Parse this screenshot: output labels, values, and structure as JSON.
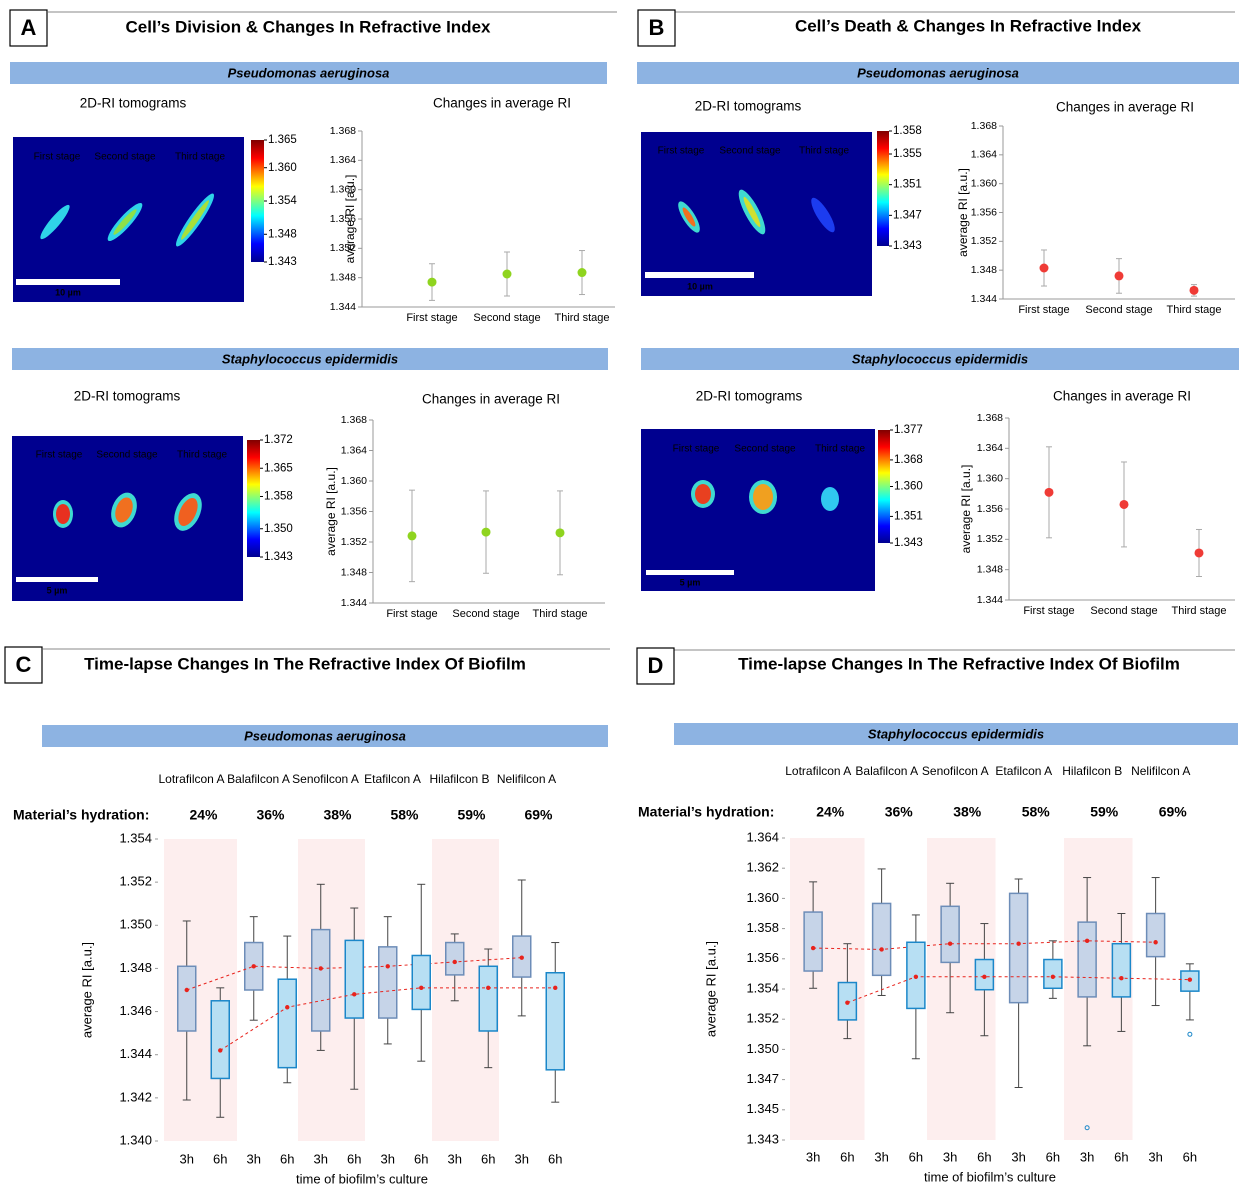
{
  "panels": [
    {
      "letter": "A",
      "title": "Cell’s Division & Changes In Refractive Index"
    },
    {
      "letter": "B",
      "title": "Cell’s Death & Changes In Refractive Index"
    },
    {
      "letter": "C",
      "title": "Time-lapse Changes In The Refractive Index Of Biofilm"
    },
    {
      "letter": "D",
      "title": "Time-lapse Changes In The Refractive Index Of Biofilm"
    }
  ],
  "tomograms": [
    {
      "banner": "Pseudomonas aeruginosa",
      "heading": "2D-RI tomograms",
      "stages": [
        "First stage",
        "Second stage",
        "Third stage"
      ],
      "scale_bar": "10 µm",
      "colorbar_ticks": [
        1.365,
        {
          "value": 1.36,
          "label": "1.360"
        },
        1.354,
        1.348,
        1.343
      ]
    },
    {
      "banner": "Staphylococcus epidermidis",
      "heading": "2D-RI tomograms",
      "stages": [
        "First stage",
        "Second stage",
        "Third stage"
      ],
      "scale_bar": "5 µm",
      "colorbar_ticks": [
        1.372,
        1.365,
        1.358,
        {
          "value": 1.35,
          "label": "1.350"
        },
        1.343
      ]
    },
    {
      "banner": "Pseudomonas aeruginosa",
      "heading": "2D-RI tomograms",
      "stages": [
        "First stage",
        "Second stage",
        "Third stage"
      ],
      "scale_bar": "10 µm",
      "colorbar_ticks": [
        1.358,
        1.355,
        1.351,
        1.347,
        1.343
      ]
    },
    {
      "banner": "Staphylococcus epidermidis",
      "heading": "2D-RI tomograms",
      "stages": [
        "First stage",
        "Second stage",
        "Third stage"
      ],
      "scale_bar": "5 µm",
      "colorbar_ticks": [
        1.377,
        1.368,
        {
          "value": 1.36,
          "label": "1.360"
        },
        1.351,
        1.343
      ]
    }
  ],
  "chart_data": [
    {
      "type": "errorbar",
      "title": "Changes in average RI",
      "y_label": "average RI [a.u.]",
      "categories": [
        "First stage",
        "Second stage",
        "Third stage"
      ],
      "values": [
        1.3474,
        1.3485,
        1.3487
      ],
      "errors": [
        0.0025,
        0.003,
        0.003
      ],
      "color": "#8fd41f",
      "ylim": [
        1.344,
        1.368
      ],
      "yticks": [
        1.344,
        1.348,
        1.352,
        1.356,
        {
          "value": 1.36,
          "label": "1.360"
        },
        1.364,
        1.368
      ]
    },
    {
      "type": "errorbar",
      "title": "Changes in average RI",
      "y_label": "average RI [a.u.]",
      "categories": [
        "First stage",
        "Second stage",
        "Third stage"
      ],
      "values": [
        1.3528,
        1.3533,
        1.3532
      ],
      "errors": [
        0.006,
        0.0054,
        0.0055
      ],
      "color": "#8fd41f",
      "ylim": [
        1.344,
        1.368
      ],
      "yticks": [
        1.344,
        1.348,
        1.352,
        1.356,
        {
          "value": 1.36,
          "label": "1.360"
        },
        1.364,
        1.368
      ]
    },
    {
      "type": "errorbar",
      "title": "Changes in average RI",
      "y_label": "average RI [a.u.]",
      "categories": [
        "First stage",
        "Second stage",
        "Third stage"
      ],
      "values": [
        1.3483,
        1.3472,
        1.3452
      ],
      "errors": [
        0.0025,
        0.0024,
        0.0008
      ],
      "color": "#ef3b36",
      "ylim": [
        1.344,
        1.368
      ],
      "yticks": [
        1.344,
        1.348,
        1.352,
        1.356,
        {
          "value": 1.36,
          "label": "1.360"
        },
        1.364,
        1.368
      ]
    },
    {
      "type": "errorbar",
      "title": "Changes in average RI",
      "y_label": "average RI [a.u.]",
      "categories": [
        "First stage",
        "Second stage",
        "Third stage"
      ],
      "values": [
        1.3582,
        1.3566,
        1.3502
      ],
      "errors": [
        0.006,
        0.0056,
        0.0031
      ],
      "color": "#ef3b36",
      "ylim": [
        1.344,
        1.368
      ],
      "yticks": [
        1.344,
        1.348,
        1.352,
        1.356,
        {
          "value": 1.36,
          "label": "1.360"
        },
        1.364,
        1.368
      ]
    },
    {
      "type": "box",
      "subtitle": "Pseudomonas aeruginosa",
      "x_label": "time of biofilm’s culture",
      "y_label": "average RI [a.u.]",
      "categories": [
        "Lotrafilcon A",
        "Balafilcon A",
        "Senofilcon A",
        "Etafilcon A",
        "Hilafilcon B",
        "Nelifilcon A"
      ],
      "hydration": {
        "label": "Material’s hydration:",
        "values": [
          24,
          36,
          38,
          58,
          59,
          69
        ],
        "value_labels": [
          "24%",
          "36%",
          "38%",
          "58%",
          "59%",
          "69%"
        ]
      },
      "series": [
        {
          "name": "3h",
          "color": "#c6d4e8",
          "edge": "#6d8db8",
          "line_color": "#e8231c",
          "low": [
            1.3419,
            1.3456,
            1.3442,
            1.3445,
            1.3465,
            1.3458
          ],
          "q1": [
            1.3451,
            1.347,
            1.3451,
            1.3457,
            1.3477,
            1.3476
          ],
          "median": [
            1.347,
            1.3481,
            1.348,
            1.3481,
            1.3483,
            1.3485
          ],
          "q3": [
            1.3481,
            1.3492,
            1.3498,
            1.349,
            1.3492,
            1.3495
          ],
          "high": [
            1.3502,
            1.3504,
            1.3519,
            1.3504,
            1.3496,
            1.3521
          ]
        },
        {
          "name": "6h",
          "color": "#b7dff3",
          "edge": "#1b87c9",
          "line_color": "#e8231c",
          "low": [
            1.3411,
            1.3427,
            1.3424,
            1.3437,
            1.3434,
            1.3418
          ],
          "q1": [
            1.3429,
            1.3434,
            1.3457,
            1.3461,
            1.3451,
            1.3433
          ],
          "median": [
            1.3442,
            1.3462,
            1.3468,
            1.3471,
            1.3471,
            1.3471
          ],
          "q3": [
            1.3465,
            1.3475,
            1.3493,
            1.3486,
            1.3481,
            1.3478
          ],
          "high": [
            1.3471,
            1.3495,
            1.3508,
            1.3519,
            1.3489,
            1.3492
          ]
        }
      ],
      "ylim": [
        1.34,
        1.354
      ],
      "yticks": [
        {
          "value": 1.34,
          "label": "1.340"
        },
        1.342,
        1.344,
        1.346,
        1.348,
        {
          "value": 1.35,
          "label": "1.350"
        },
        1.352,
        1.354
      ]
    },
    {
      "type": "box",
      "subtitle": "Staphylococcus epidermidis",
      "x_label": "time of biofilm’s culture",
      "y_label": "average RI [a.u.]",
      "categories": [
        "Lotrafilcon A",
        "Balafilcon A",
        "Senofilcon A",
        "Etafilcon A",
        "Hilafilcon B",
        "Nelifilcon A"
      ],
      "hydration": {
        "label": "Material’s hydration:",
        "values": [
          24,
          36,
          38,
          58,
          59,
          69
        ],
        "value_labels": [
          "24%",
          "36%",
          "38%",
          "58%",
          "59%",
          "69%"
        ]
      },
      "series": [
        {
          "name": "3h",
          "color": "#c6d4e8",
          "edge": "#6d8db8",
          "line_color": "#e8231c",
          "low": [
            1.3538,
            1.3533,
            1.3521,
            1.3469,
            1.3498,
            1.3526
          ],
          "q1": [
            1.355,
            1.3547,
            1.3556,
            1.3528,
            1.3532,
            1.356
          ],
          "median": [
            1.3566,
            1.3565,
            1.3569,
            1.3569,
            1.3571,
            1.357
          ],
          "q3": [
            1.3591,
            1.3597,
            1.3595,
            1.3604,
            1.3584,
            1.359
          ],
          "high": [
            1.3612,
            1.3621,
            1.3611,
            1.3614,
            1.3615,
            1.3615
          ],
          "outliers": [
            null,
            null,
            null,
            null,
            1.3441,
            null
          ]
        },
        {
          "name": "6h",
          "color": "#b7dff3",
          "edge": "#1b87c9",
          "line_color": "#e8231c",
          "low": [
            1.3503,
            1.3489,
            1.3505,
            1.3531,
            1.3508,
            1.3516
          ],
          "q1": [
            1.3516,
            1.3524,
            1.3537,
            1.3538,
            1.3532,
            1.3536
          ],
          "median": [
            1.3528,
            1.3546,
            1.3546,
            1.3546,
            1.3545,
            1.3544
          ],
          "q3": [
            1.3542,
            1.357,
            1.3558,
            1.3558,
            1.3569,
            1.355
          ],
          "high": [
            1.3569,
            1.3589,
            1.3583,
            1.3571,
            1.359,
            1.3555
          ],
          "outliers": [
            null,
            null,
            null,
            null,
            null,
            1.3506
          ]
        }
      ],
      "ylim": [
        1.34325,
        1.36425
      ],
      "yticks": [
        {
          "value": 1.34325,
          "label": "1.343"
        },
        {
          "value": 1.34535,
          "label": "1.345"
        },
        {
          "value": 1.34745,
          "label": "1.347"
        },
        {
          "value": 1.34955,
          "label": "1.350"
        },
        {
          "value": 1.35165,
          "label": "1.352"
        },
        {
          "value": 1.35375,
          "label": "1.354"
        },
        {
          "value": 1.35585,
          "label": "1.356"
        },
        {
          "value": 1.35795,
          "label": "1.358"
        },
        {
          "value": 1.36005,
          "label": "1.360"
        },
        {
          "value": 1.36215,
          "label": "1.362"
        },
        {
          "value": 1.36425,
          "label": "1.364"
        }
      ]
    }
  ]
}
